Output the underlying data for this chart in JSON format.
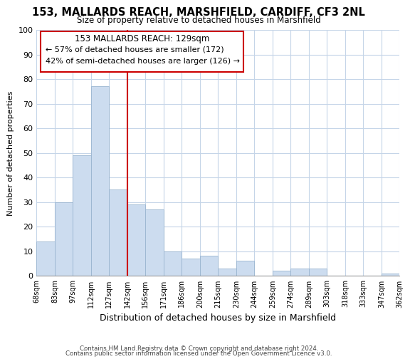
{
  "title": "153, MALLARDS REACH, MARSHFIELD, CARDIFF, CF3 2NL",
  "subtitle": "Size of property relative to detached houses in Marshfield",
  "xlabel": "Distribution of detached houses by size in Marshfield",
  "ylabel": "Number of detached properties",
  "bins": [
    "68sqm",
    "83sqm",
    "97sqm",
    "112sqm",
    "127sqm",
    "142sqm",
    "156sqm",
    "171sqm",
    "186sqm",
    "200sqm",
    "215sqm",
    "230sqm",
    "244sqm",
    "259sqm",
    "274sqm",
    "289sqm",
    "303sqm",
    "318sqm",
    "333sqm",
    "347sqm",
    "362sqm"
  ],
  "values": [
    14,
    30,
    49,
    77,
    35,
    29,
    27,
    10,
    7,
    8,
    3,
    6,
    0,
    2,
    3,
    3,
    0,
    0,
    0,
    1
  ],
  "bar_color": "#ccdcef",
  "bar_edge_color": "#9ab5d0",
  "highlight_line_color": "#cc0000",
  "highlight_line_index": 4,
  "ylim": [
    0,
    100
  ],
  "yticks": [
    0,
    10,
    20,
    30,
    40,
    50,
    60,
    70,
    80,
    90,
    100
  ],
  "annotation_title": "153 MALLARDS REACH: 129sqm",
  "annotation_line1": "← 57% of detached houses are smaller (172)",
  "annotation_line2": "42% of semi-detached houses are larger (126) →",
  "footer1": "Contains HM Land Registry data © Crown copyright and database right 2024.",
  "footer2": "Contains public sector information licensed under the Open Government Licence v3.0.",
  "background_color": "#ffffff",
  "grid_color": "#c5d5e8"
}
